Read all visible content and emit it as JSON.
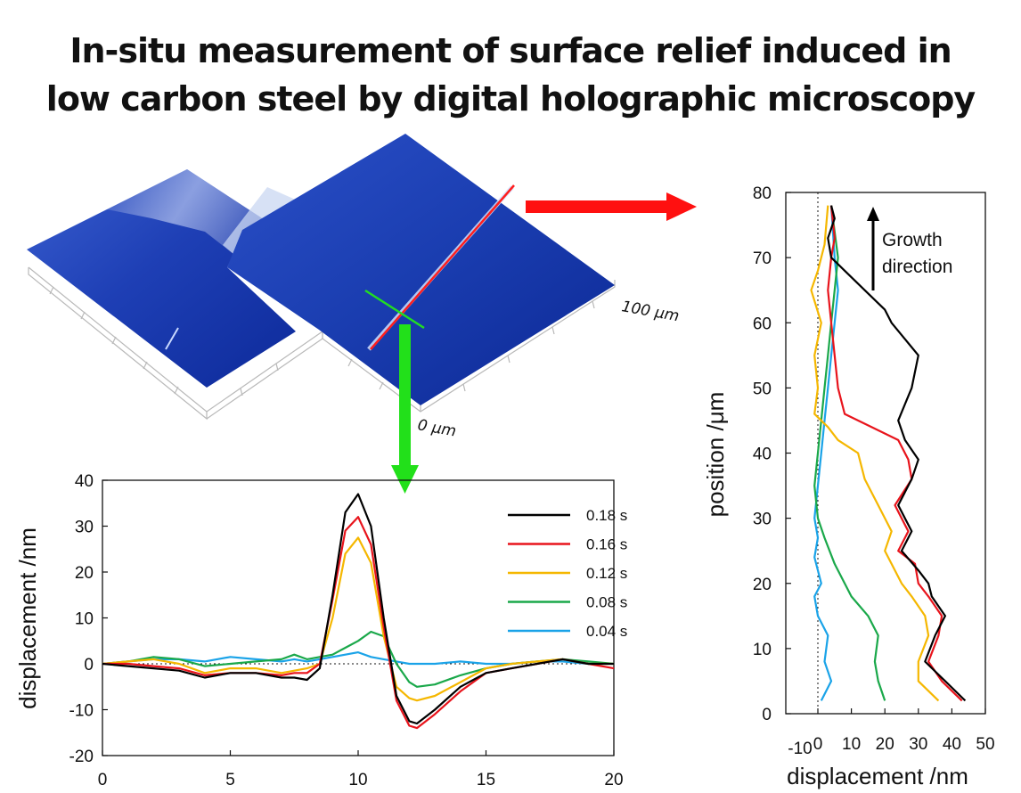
{
  "title_lines": [
    "In-situ measurement of surface relief induced in",
    "low carbon steel by digital holographic microscopy"
  ],
  "surface_image": {
    "label_100": "100 μm",
    "label_0": "0 μm"
  },
  "chart_data": [
    {
      "type": "line",
      "ylabel": "displacement /nm",
      "xlim": [
        0,
        20
      ],
      "ylim": [
        -20,
        40
      ],
      "xticks": [
        "0",
        "5",
        "10",
        "15",
        "20"
      ],
      "yticks": [
        "-20",
        "-10",
        "0",
        "10",
        "20",
        "30",
        "40"
      ],
      "legend_position": "top-right",
      "reference_line": 0,
      "series": [
        {
          "name": "0.18 s",
          "color": "#000000",
          "x": [
            0,
            1,
            2,
            3,
            4,
            5,
            6,
            7,
            7.5,
            8,
            8.5,
            9,
            9.5,
            10,
            10.5,
            11,
            11.5,
            12,
            12.3,
            13,
            14,
            15,
            16,
            17,
            18,
            19,
            20
          ],
          "y": [
            0,
            -0.5,
            -1,
            -1.5,
            -3,
            -2,
            -2,
            -3,
            -3,
            -3.5,
            -1,
            15,
            33,
            37,
            30,
            10,
            -7,
            -12.5,
            -13,
            -10,
            -5,
            -2,
            -1,
            0,
            1,
            0,
            0
          ]
        },
        {
          "name": "0.16 s",
          "color": "#e8141c",
          "x": [
            0,
            1,
            2,
            3,
            4,
            5,
            6,
            7,
            7.5,
            8,
            8.5,
            9,
            9.5,
            10,
            10.5,
            11,
            11.5,
            12,
            12.3,
            13,
            14,
            15,
            16,
            17,
            18,
            19,
            20
          ],
          "y": [
            0,
            0,
            -0.5,
            -1,
            -2.5,
            -2,
            -2,
            -2.5,
            -2,
            -2,
            0,
            14,
            29,
            32,
            26,
            8,
            -8,
            -13.5,
            -14,
            -11,
            -6,
            -2,
            -1,
            0,
            1,
            0,
            -1
          ]
        },
        {
          "name": "0.12 s",
          "color": "#f5b700",
          "x": [
            0,
            1,
            2,
            3,
            4,
            5,
            6,
            7,
            7.5,
            8,
            8.5,
            9,
            9.5,
            10,
            10.5,
            11,
            11.5,
            12,
            12.3,
            13,
            14,
            15,
            16,
            17,
            18,
            19,
            20
          ],
          "y": [
            0,
            0.5,
            1,
            0,
            -2,
            -1,
            -1,
            -2,
            -1.5,
            -1,
            0,
            10,
            24,
            27.5,
            22,
            6,
            -5,
            -7.5,
            -8,
            -7,
            -4,
            -1,
            0,
            0.5,
            1,
            0,
            0
          ]
        },
        {
          "name": "0.08 s",
          "color": "#1aa84a",
          "x": [
            0,
            1,
            2,
            3,
            4,
            5,
            6,
            7,
            7.5,
            8,
            8.5,
            9,
            9.5,
            10,
            10.5,
            11,
            11.5,
            12,
            12.3,
            13,
            14,
            15,
            16,
            17,
            18,
            19,
            20
          ],
          "y": [
            0,
            0.5,
            1.5,
            1,
            -0.5,
            0,
            0.5,
            1,
            2,
            1,
            1.5,
            2,
            3.5,
            5,
            7,
            6,
            0,
            -4,
            -5,
            -4.5,
            -2.5,
            -1,
            0,
            0.5,
            1,
            0.5,
            0
          ]
        },
        {
          "name": "0.04 s",
          "color": "#1aa3e8",
          "x": [
            0,
            1,
            2,
            3,
            4,
            5,
            6,
            7,
            7.5,
            8,
            8.5,
            9,
            9.5,
            10,
            10.5,
            11,
            11.5,
            12,
            12.3,
            13,
            14,
            15,
            16,
            17,
            18,
            19,
            20
          ],
          "y": [
            0,
            0.5,
            1,
            1,
            0.5,
            1.5,
            1,
            0.5,
            1,
            0.5,
            1,
            1.5,
            2,
            2.5,
            1.5,
            1,
            0.5,
            0,
            0,
            0,
            0.5,
            0,
            0,
            0.5,
            0.5,
            0,
            0
          ]
        }
      ]
    },
    {
      "type": "line",
      "xlabel": "displacement /nm",
      "ylabel": "position /μm",
      "xlim": [
        -10,
        50
      ],
      "ylim": [
        0,
        80
      ],
      "xticks": [
        "-10",
        "0",
        "10",
        "20",
        "30",
        "40",
        "50"
      ],
      "yticks": [
        "0",
        "10",
        "20",
        "30",
        "40",
        "50",
        "60",
        "70",
        "80"
      ],
      "reference_line": 0,
      "annotation": [
        "Growth",
        "direction"
      ],
      "series": [
        {
          "name": "0.18 s",
          "color": "#000000",
          "x": [
            44,
            38,
            32,
            35,
            38,
            34,
            33,
            30,
            25,
            28,
            24,
            28,
            30,
            26,
            24,
            28,
            30,
            22,
            20,
            14,
            8,
            4,
            3,
            5,
            4
          ],
          "y": [
            2,
            5,
            8,
            12,
            15,
            18,
            20,
            22,
            25,
            28,
            32,
            36,
            39,
            42,
            45,
            50,
            55,
            60,
            62,
            65,
            68,
            70,
            73,
            76,
            78
          ]
        },
        {
          "name": "0.16 s",
          "color": "#e8141c",
          "x": [
            43,
            37,
            33,
            36,
            37,
            33,
            30,
            29,
            24,
            27,
            23,
            28,
            27,
            24,
            16,
            8,
            6,
            5,
            4,
            3,
            4,
            5,
            4
          ],
          "y": [
            2,
            5,
            8,
            12,
            15,
            18,
            20,
            23,
            25,
            28,
            32,
            36,
            39,
            42,
            44,
            46,
            50,
            55,
            60,
            65,
            70,
            73,
            78
          ]
        },
        {
          "name": "0.12 s",
          "color": "#f5b700",
          "x": [
            36,
            30,
            30,
            33,
            32,
            28,
            25,
            20,
            22,
            18,
            14,
            12,
            6,
            3,
            -1,
            0,
            -1,
            1,
            -2,
            0,
            2,
            3
          ],
          "y": [
            2,
            5,
            8,
            12,
            15,
            18,
            20,
            25,
            28,
            32,
            36,
            40,
            42,
            44,
            46,
            50,
            55,
            60,
            65,
            68,
            72,
            78
          ]
        },
        {
          "name": "0.08 s",
          "color": "#1aa84a",
          "x": [
            20,
            18,
            17,
            18,
            15,
            10,
            8,
            5,
            2,
            0,
            -1,
            0,
            1,
            2,
            3,
            4,
            5,
            6,
            4
          ],
          "y": [
            2,
            5,
            8,
            12,
            15,
            18,
            20,
            23,
            27,
            30,
            35,
            40,
            45,
            50,
            55,
            60,
            65,
            70,
            78
          ]
        },
        {
          "name": "0.04 s",
          "color": "#1aa3e8",
          "x": [
            1,
            4,
            2,
            3,
            0,
            -1,
            1,
            -1,
            0,
            -1,
            0,
            1,
            2,
            3,
            4,
            5,
            6,
            5,
            4
          ],
          "y": [
            2,
            5,
            8,
            12,
            15,
            18,
            20,
            24,
            27,
            30,
            35,
            40,
            45,
            50,
            55,
            60,
            65,
            70,
            78
          ]
        }
      ]
    }
  ]
}
